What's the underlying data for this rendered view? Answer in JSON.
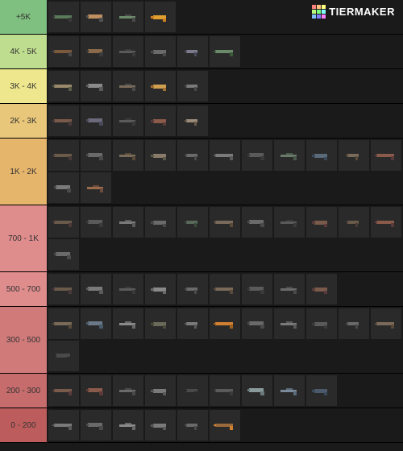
{
  "brand": {
    "name": "TIERMAKER"
  },
  "logo_colors": [
    "#ff7f7f",
    "#ffbf7f",
    "#ffff7f",
    "#bfff7f",
    "#7fff7f",
    "#7fffff",
    "#7fbfff",
    "#7f7fff",
    "#ff7fff"
  ],
  "background_color": "#1a1a1a",
  "item_bg": "#2a2a2a",
  "tiers": [
    {
      "label": "+5K",
      "color": "#7fbf7f",
      "items": [
        {
          "c1": "#5a7a5a",
          "c2": "#3a3a3a"
        },
        {
          "c1": "#c09060",
          "c2": "#505050"
        },
        {
          "c1": "#6a8a6a",
          "c2": "#4a4a4a"
        },
        {
          "c1": "#e0a030",
          "c2": "#d08020"
        }
      ]
    },
    {
      "label": "4K - 5K",
      "color": "#bedd8f",
      "items": [
        {
          "c1": "#7a5a3a",
          "c2": "#4a4a4a"
        },
        {
          "c1": "#8a6a4a",
          "c2": "#3a3a3a"
        },
        {
          "c1": "#5a5a5a",
          "c2": "#3a3a3a"
        },
        {
          "c1": "#6a6a6a",
          "c2": "#4a4a4a"
        },
        {
          "c1": "#7a7a8a",
          "c2": "#4a4a5a"
        },
        {
          "c1": "#6a8a6a",
          "c2": "#3a5a3a"
        }
      ]
    },
    {
      "label": "3K - 4K",
      "color": "#efe78e",
      "items": [
        {
          "c1": "#9a8a6a",
          "c2": "#5a5a4a"
        },
        {
          "c1": "#8a8a8a",
          "c2": "#5a5a5a"
        },
        {
          "c1": "#7a6a5a",
          "c2": "#4a4a4a"
        },
        {
          "c1": "#d0a050",
          "c2": "#a07030"
        },
        {
          "c1": "#7a7a7a",
          "c2": "#4a4a4a"
        }
      ]
    },
    {
      "label": "2K - 3K",
      "color": "#e8c67a",
      "items": [
        {
          "c1": "#7a5a4a",
          "c2": "#4a3a3a"
        },
        {
          "c1": "#6a6a7a",
          "c2": "#4a4a5a"
        },
        {
          "c1": "#5a5a5a",
          "c2": "#3a3a3a"
        },
        {
          "c1": "#8a5a4a",
          "c2": "#5a3a3a"
        },
        {
          "c1": "#9a8a7a",
          "c2": "#6a5a4a"
        }
      ]
    },
    {
      "label": "1K - 2K",
      "color": "#e6b56c",
      "items": [
        {
          "c1": "#6a5a4a",
          "c2": "#4a3a3a"
        },
        {
          "c1": "#6a6a6a",
          "c2": "#4a4a4a"
        },
        {
          "c1": "#7a6a5a",
          "c2": "#5a4a3a"
        },
        {
          "c1": "#8a7a6a",
          "c2": "#5a5a4a"
        },
        {
          "c1": "#6a6a6a",
          "c2": "#4a4a4a"
        },
        {
          "c1": "#7a7a7a",
          "c2": "#5a5a5a"
        },
        {
          "c1": "#5a5a5a",
          "c2": "#3a3a3a"
        },
        {
          "c1": "#6a7a6a",
          "c2": "#4a5a4a"
        },
        {
          "c1": "#5a6a7a",
          "c2": "#3a4a5a"
        },
        {
          "c1": "#7a6a5a",
          "c2": "#5a4a3a"
        },
        {
          "c1": "#8a5a4a",
          "c2": "#5a3a3a"
        },
        {
          "c1": "#7a7a7a",
          "c2": "#4a4a4a"
        },
        {
          "c1": "#9a6a4a",
          "c2": "#6a4a3a"
        }
      ]
    },
    {
      "label": "700 - 1K",
      "color": "#de8c8c",
      "items": [
        {
          "c1": "#6a5a4a",
          "c2": "#4a3a3a"
        },
        {
          "c1": "#5a5a5a",
          "c2": "#3a3a3a"
        },
        {
          "c1": "#7a7a7a",
          "c2": "#5a5a5a"
        },
        {
          "c1": "#6a6a6a",
          "c2": "#4a4a4a"
        },
        {
          "c1": "#5a6a5a",
          "c2": "#3a4a3a"
        },
        {
          "c1": "#7a6a5a",
          "c2": "#5a4a3a"
        },
        {
          "c1": "#6a6a6a",
          "c2": "#4a4a4a"
        },
        {
          "c1": "#5a5a5a",
          "c2": "#3a3a3a"
        },
        {
          "c1": "#7a5a4a",
          "c2": "#5a3a3a"
        },
        {
          "c1": "#6a5a4a",
          "c2": "#4a3a3a"
        },
        {
          "c1": "#8a5a4a",
          "c2": "#5a3a3a"
        },
        {
          "c1": "#6a6a6a",
          "c2": "#4a4a4a"
        }
      ]
    },
    {
      "label": "500 - 700",
      "color": "#de8c8c",
      "items": [
        {
          "c1": "#6a5a4a",
          "c2": "#4a3a3a"
        },
        {
          "c1": "#7a7a7a",
          "c2": "#5a5a5a"
        },
        {
          "c1": "#5a5a5a",
          "c2": "#3a3a3a"
        },
        {
          "c1": "#8a8a8a",
          "c2": "#6a6a6a"
        },
        {
          "c1": "#6a6a6a",
          "c2": "#4a4a4a"
        },
        {
          "c1": "#7a6a5a",
          "c2": "#5a4a3a"
        },
        {
          "c1": "#5a5a5a",
          "c2": "#3a3a3a"
        },
        {
          "c1": "#6a6a6a",
          "c2": "#4a4a4a"
        },
        {
          "c1": "#7a5a4a",
          "c2": "#5a3a3a"
        }
      ]
    },
    {
      "label": "300 - 500",
      "color": "#d07a7a",
      "items": [
        {
          "c1": "#7a6a5a",
          "c2": "#5a4a3a"
        },
        {
          "c1": "#6a7a8a",
          "c2": "#4a5a6a"
        },
        {
          "c1": "#8a8a8a",
          "c2": "#6a6a6a"
        },
        {
          "c1": "#6a6a5a",
          "c2": "#4a4a3a"
        },
        {
          "c1": "#7a7a7a",
          "c2": "#5a5a5a"
        },
        {
          "c1": "#d08030",
          "c2": "#a06020"
        },
        {
          "c1": "#6a6a6a",
          "c2": "#4a4a4a"
        },
        {
          "c1": "#7a7a7a",
          "c2": "#5a5a5a"
        },
        {
          "c1": "#5a5a5a",
          "c2": "#3a3a3a"
        },
        {
          "c1": "#6a6a6a",
          "c2": "#4a4a4a"
        },
        {
          "c1": "#7a6a5a",
          "c2": "#5a4a3a"
        },
        {
          "c1": "#4a4a4a",
          "c2": "#2a2a2a"
        }
      ]
    },
    {
      "label": "200 - 300",
      "color": "#c66c6c",
      "items": [
        {
          "c1": "#7a5a4a",
          "c2": "#5a3a3a"
        },
        {
          "c1": "#8a5a4a",
          "c2": "#5a3a3a"
        },
        {
          "c1": "#6a6a6a",
          "c2": "#4a4a4a"
        },
        {
          "c1": "#7a7a7a",
          "c2": "#5a5a5a"
        },
        {
          "c1": "#4a4a4a",
          "c2": "#2a2a2a"
        },
        {
          "c1": "#5a5a5a",
          "c2": "#3a3a3a"
        },
        {
          "c1": "#8a9a9a",
          "c2": "#6a7a7a"
        },
        {
          "c1": "#7a8a9a",
          "c2": "#5a6a7a"
        },
        {
          "c1": "#4a5a6a",
          "c2": "#3a4a5a"
        }
      ]
    },
    {
      "label": "0 - 200",
      "color": "#bd5c5c",
      "items": [
        {
          "c1": "#7a7a7a",
          "c2": "#5a5a5a"
        },
        {
          "c1": "#6a6a6a",
          "c2": "#4a4a4a"
        },
        {
          "c1": "#8a8a8a",
          "c2": "#6a6a6a"
        },
        {
          "c1": "#7a7a7a",
          "c2": "#5a5a5a"
        },
        {
          "c1": "#6a6a6a",
          "c2": "#4a4a4a"
        },
        {
          "c1": "#9a6a3a",
          "c2": "#d08030"
        }
      ]
    }
  ]
}
